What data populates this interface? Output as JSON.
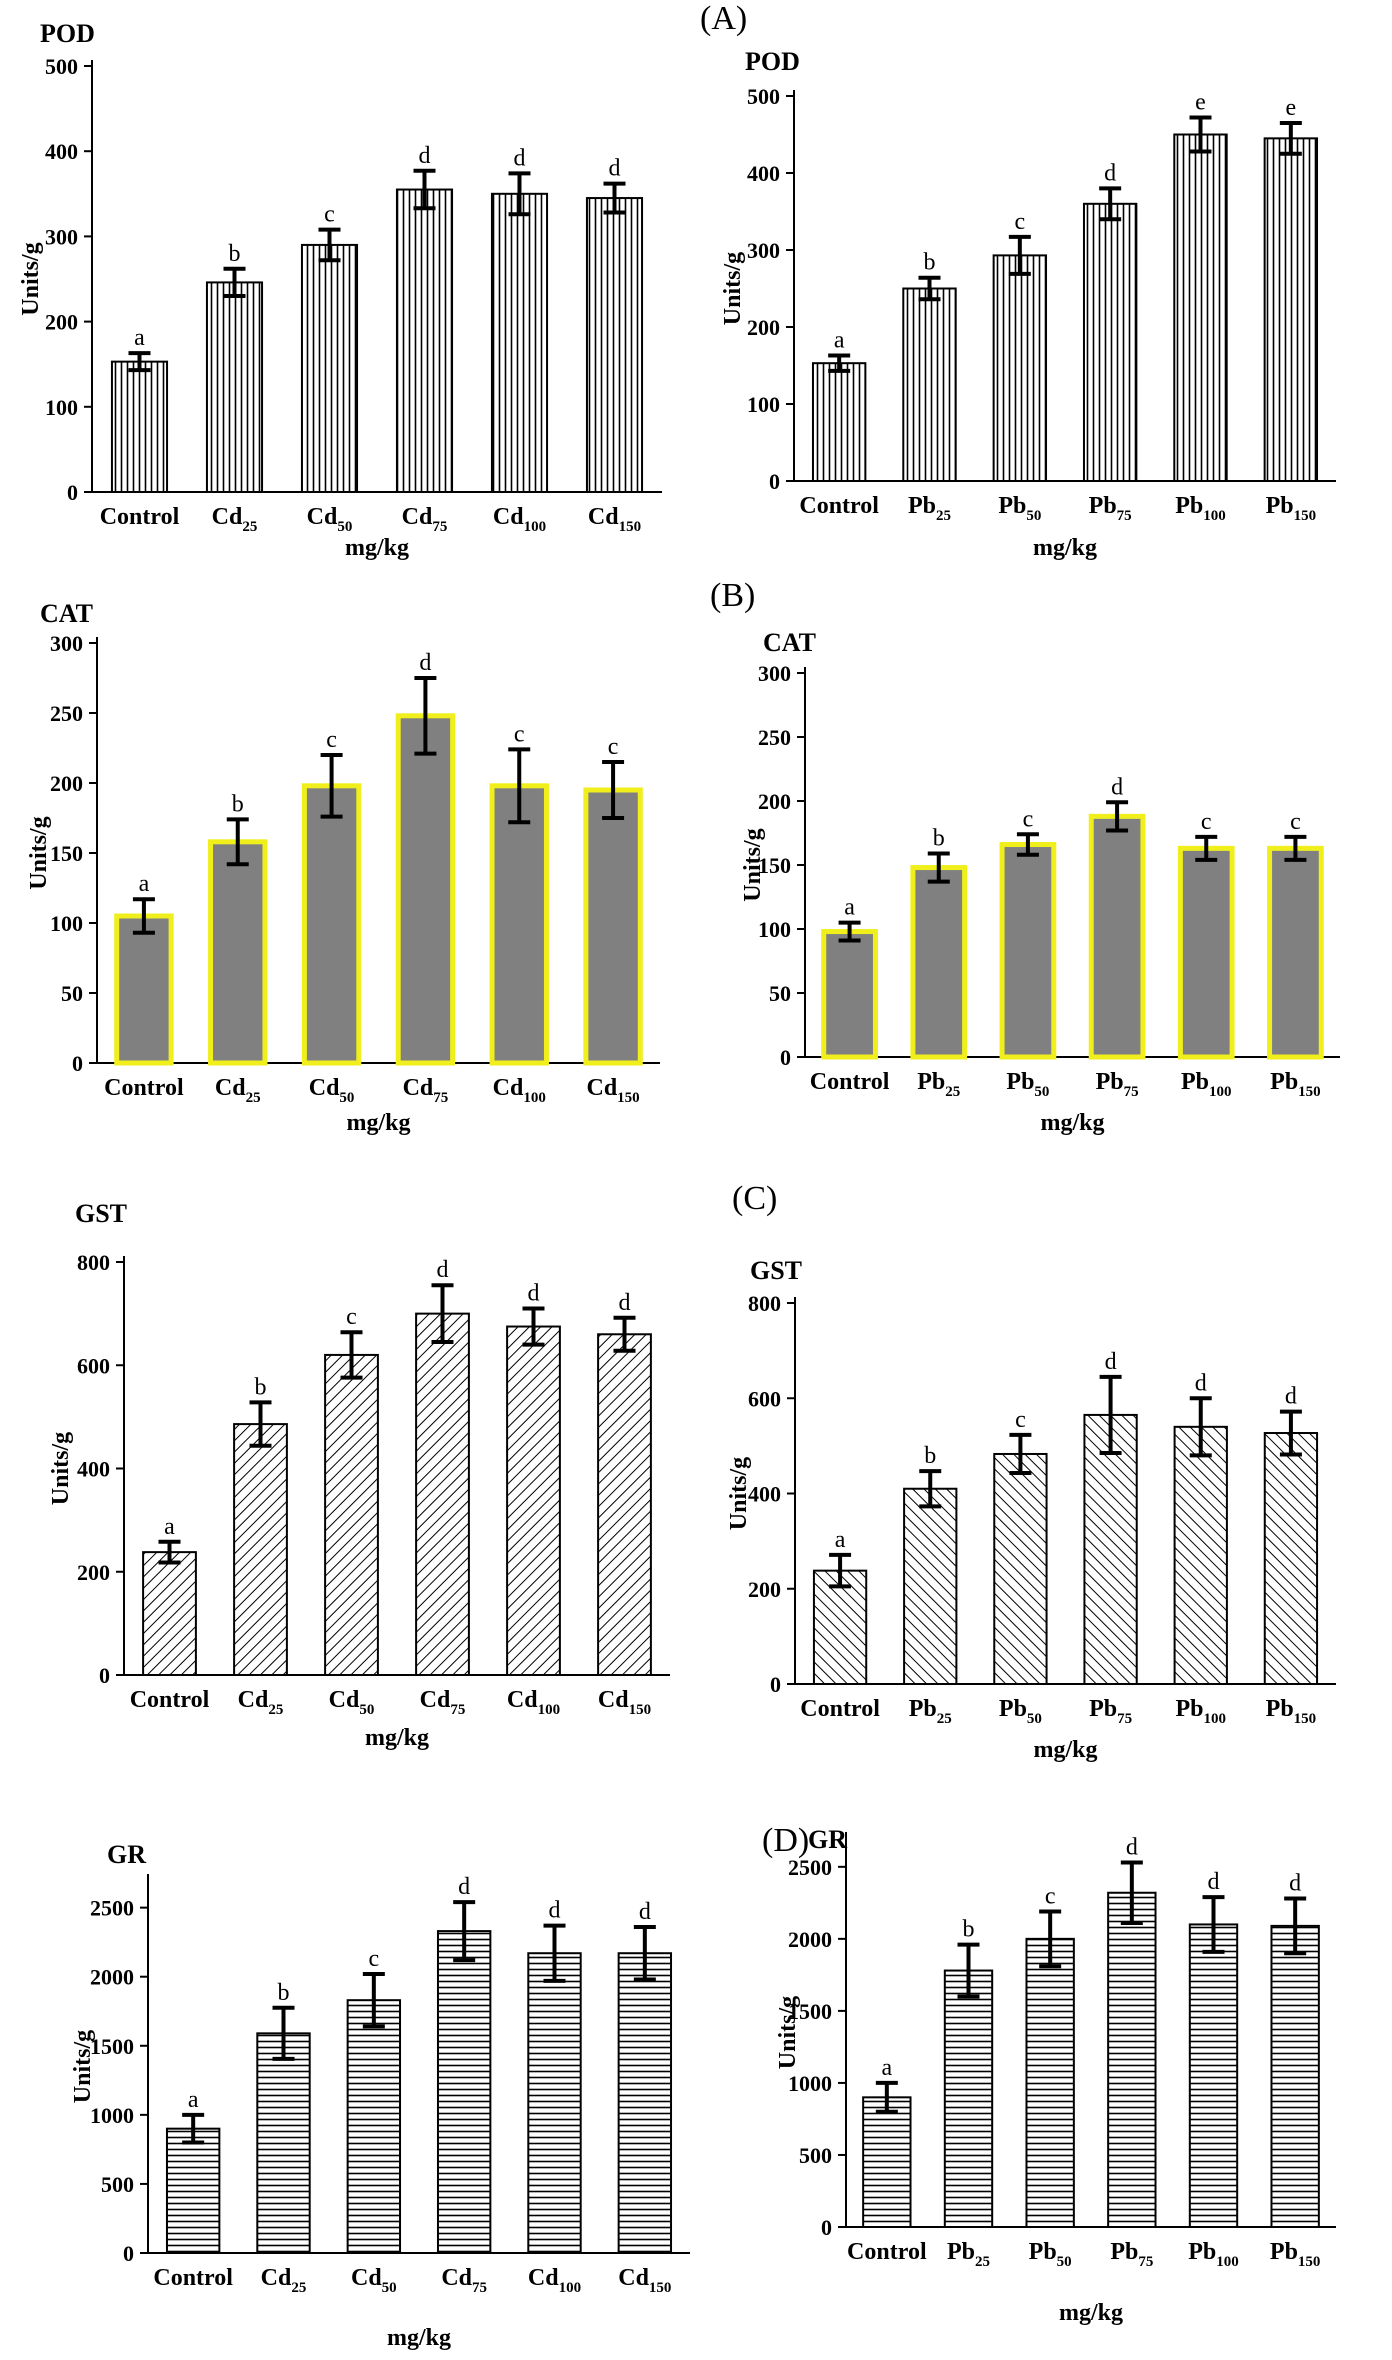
{
  "panel_labels": [
    "(A)",
    "(B)",
    "(C)",
    "(D)"
  ],
  "chart_data": [
    {
      "id": "pod-cd",
      "type": "bar",
      "title": "POD",
      "xlabel": "mg/kg",
      "ylabel": "Units/g",
      "ylim": [
        0,
        500
      ],
      "yticks": [
        0,
        100,
        200,
        300,
        400,
        500
      ],
      "categories": [
        {
          "base": "Control",
          "sub": ""
        },
        {
          "base": "Cd",
          "sub": "25"
        },
        {
          "base": "Cd",
          "sub": "50"
        },
        {
          "base": "Cd",
          "sub": "75"
        },
        {
          "base": "Cd",
          "sub": "100"
        },
        {
          "base": "Cd",
          "sub": "150"
        }
      ],
      "values": [
        153,
        246,
        290,
        355,
        350,
        345
      ],
      "errors": [
        10,
        16,
        18,
        22,
        24,
        17
      ],
      "letters": [
        "a",
        "b",
        "c",
        "d",
        "d",
        "d"
      ],
      "fill": "vertical",
      "edge": "#000000"
    },
    {
      "id": "pod-pb",
      "type": "bar",
      "title": "POD",
      "xlabel": "mg/kg",
      "ylabel": "Units/g",
      "ylim": [
        0,
        500
      ],
      "yticks": [
        0,
        100,
        200,
        300,
        400,
        500
      ],
      "categories": [
        {
          "base": "Control",
          "sub": ""
        },
        {
          "base": "Pb",
          "sub": "25"
        },
        {
          "base": "Pb",
          "sub": "50"
        },
        {
          "base": "Pb",
          "sub": "75"
        },
        {
          "base": "Pb",
          "sub": "100"
        },
        {
          "base": "Pb",
          "sub": "150"
        }
      ],
      "values": [
        153,
        250,
        293,
        360,
        450,
        445
      ],
      "errors": [
        10,
        14,
        24,
        20,
        22,
        20
      ],
      "letters": [
        "a",
        "b",
        "c",
        "d",
        "e",
        "e"
      ],
      "fill": "vertical",
      "edge": "#000000"
    },
    {
      "id": "cat-cd",
      "type": "bar",
      "title": "CAT",
      "xlabel": "mg/kg",
      "ylabel": "Units/g",
      "ylim": [
        0,
        300
      ],
      "yticks": [
        0,
        50,
        100,
        150,
        200,
        250,
        300
      ],
      "categories": [
        {
          "base": "Control",
          "sub": ""
        },
        {
          "base": "Cd",
          "sub": "25"
        },
        {
          "base": "Cd",
          "sub": "50"
        },
        {
          "base": "Cd",
          "sub": "75"
        },
        {
          "base": "Cd",
          "sub": "100"
        },
        {
          "base": "Cd",
          "sub": "150"
        }
      ],
      "values": [
        105,
        158,
        198,
        248,
        198,
        195
      ],
      "errors": [
        12,
        16,
        22,
        27,
        26,
        20
      ],
      "letters": [
        "a",
        "b",
        "c",
        "d",
        "c",
        "c"
      ],
      "fill": "gray",
      "edge": "#f0ef1c"
    },
    {
      "id": "cat-pb",
      "type": "bar",
      "title": "CAT",
      "xlabel": "mg/kg",
      "ylabel": "Units/g",
      "ylim": [
        0,
        300
      ],
      "yticks": [
        0,
        50,
        100,
        150,
        200,
        250,
        300
      ],
      "categories": [
        {
          "base": "Control",
          "sub": ""
        },
        {
          "base": "Pb",
          "sub": "25"
        },
        {
          "base": "Pb",
          "sub": "50"
        },
        {
          "base": "Pb",
          "sub": "75"
        },
        {
          "base": "Pb",
          "sub": "100"
        },
        {
          "base": "Pb",
          "sub": "150"
        }
      ],
      "values": [
        98,
        148,
        166,
        188,
        163,
        163
      ],
      "errors": [
        7,
        11,
        8,
        11,
        9,
        9
      ],
      "letters": [
        "a",
        "b",
        "c",
        "d",
        "c",
        "c"
      ],
      "fill": "gray",
      "edge": "#f0ef1c"
    },
    {
      "id": "gst-cd",
      "type": "bar",
      "title": "GST",
      "xlabel": "mg/kg",
      "ylabel": "Units/g",
      "ylim": [
        0,
        800
      ],
      "yticks": [
        0,
        200,
        400,
        600,
        800
      ],
      "categories": [
        {
          "base": "Control",
          "sub": ""
        },
        {
          "base": "Cd",
          "sub": "25"
        },
        {
          "base": "Cd",
          "sub": "50"
        },
        {
          "base": "Cd",
          "sub": "75"
        },
        {
          "base": "Cd",
          "sub": "100"
        },
        {
          "base": "Cd",
          "sub": "150"
        }
      ],
      "values": [
        238,
        486,
        620,
        700,
        675,
        660
      ],
      "errors": [
        20,
        42,
        44,
        55,
        35,
        32
      ],
      "letters": [
        "a",
        "b",
        "c",
        "d",
        "d",
        "d"
      ],
      "fill": "diagUp",
      "edge": "#000000"
    },
    {
      "id": "gst-pb",
      "type": "bar",
      "title": "GST",
      "xlabel": "mg/kg",
      "ylabel": "Units/g",
      "ylim": [
        0,
        800
      ],
      "yticks": [
        0,
        200,
        400,
        600,
        800
      ],
      "categories": [
        {
          "base": "Control",
          "sub": ""
        },
        {
          "base": "Pb",
          "sub": "25"
        },
        {
          "base": "Pb",
          "sub": "50"
        },
        {
          "base": "Pb",
          "sub": "75"
        },
        {
          "base": "Pb",
          "sub": "100"
        },
        {
          "base": "Pb",
          "sub": "150"
        }
      ],
      "values": [
        238,
        410,
        483,
        565,
        540,
        527
      ],
      "errors": [
        33,
        37,
        40,
        80,
        60,
        45
      ],
      "letters": [
        "a",
        "b",
        "c",
        "d",
        "d",
        "d"
      ],
      "fill": "diagDown",
      "edge": "#000000"
    },
    {
      "id": "gr-cd",
      "type": "bar",
      "title": "GR",
      "xlabel": "mg/kg",
      "ylabel": "Units/g",
      "ylim": [
        0,
        2700
      ],
      "yticks": [
        0,
        500,
        1000,
        1500,
        2000,
        2500
      ],
      "categories": [
        {
          "base": "Control",
          "sub": ""
        },
        {
          "base": "Cd",
          "sub": "25"
        },
        {
          "base": "Cd",
          "sub": "50"
        },
        {
          "base": "Cd",
          "sub": "75"
        },
        {
          "base": "Cd",
          "sub": "100"
        },
        {
          "base": "Cd",
          "sub": "150"
        }
      ],
      "values": [
        900,
        1590,
        1830,
        2330,
        2170,
        2170
      ],
      "errors": [
        100,
        185,
        190,
        210,
        200,
        190
      ],
      "letters": [
        "a",
        "b",
        "c",
        "d",
        "d",
        "d"
      ],
      "fill": "horizontal",
      "edge": "#000000"
    },
    {
      "id": "gr-pb",
      "type": "bar",
      "title": "GR",
      "xlabel": "mg/kg",
      "ylabel": "Units/g",
      "ylim": [
        0,
        2700
      ],
      "yticks": [
        0,
        500,
        1000,
        1500,
        2000,
        2500
      ],
      "categories": [
        {
          "base": "Control",
          "sub": ""
        },
        {
          "base": "Pb",
          "sub": "25"
        },
        {
          "base": "Pb",
          "sub": "50"
        },
        {
          "base": "Pb",
          "sub": "75"
        },
        {
          "base": "Pb",
          "sub": "100"
        },
        {
          "base": "Pb",
          "sub": "150"
        }
      ],
      "values": [
        900,
        1780,
        2000,
        2320,
        2100,
        2090
      ],
      "errors": [
        100,
        180,
        190,
        210,
        190,
        190
      ],
      "letters": [
        "a",
        "b",
        "c",
        "d",
        "d",
        "d"
      ],
      "fill": "horizontal",
      "edge": "#000000"
    }
  ]
}
